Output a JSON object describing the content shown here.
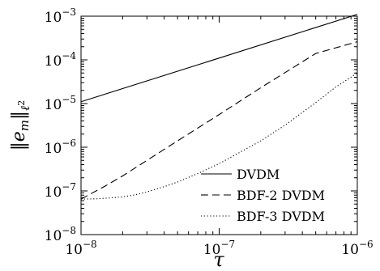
{
  "chart_data": {
    "type": "line",
    "xlabel": "τ",
    "ylabel": "‖e_m‖_ℓ²",
    "x_scale": "log",
    "y_scale": "log",
    "xlim": [
      1e-08,
      1e-06
    ],
    "ylim": [
      1e-08,
      0.001
    ],
    "x_tick_labels": [
      {
        "value": 1e-08,
        "base": "10",
        "exp": "−8"
      },
      {
        "value": 1e-07,
        "base": "10",
        "exp": "−7"
      },
      {
        "value": 1e-06,
        "base": "10",
        "exp": "−6"
      }
    ],
    "y_tick_labels": [
      {
        "value": 1e-08,
        "base": "10",
        "exp": "−8"
      },
      {
        "value": 1e-07,
        "base": "10",
        "exp": "−7"
      },
      {
        "value": 1e-06,
        "base": "10",
        "exp": "−6"
      },
      {
        "value": 1e-05,
        "base": "10",
        "exp": "−5"
      },
      {
        "value": 0.0001,
        "base": "10",
        "exp": "−4"
      },
      {
        "value": 0.001,
        "base": "10",
        "exp": "−3"
      }
    ],
    "grid": false,
    "legend_position": "bottom-right",
    "series": [
      {
        "name": "DVDM",
        "style": "solid",
        "x": [
          1e-08,
          1e-06
        ],
        "y": [
          1.1e-05,
          0.0011
        ]
      },
      {
        "name": "BDF-2 DVDM",
        "style": "dashed",
        "x": [
          1e-08,
          1.5e-08,
          2e-08,
          3e-08,
          5e-08,
          1e-07,
          2e-07,
          5e-07,
          1e-06
        ],
        "y": [
          6.5e-08,
          1.3e-07,
          2.2e-07,
          5e-07,
          1.4e-06,
          5.6e-06,
          2.3e-05,
          0.00014,
          0.00026
        ]
      },
      {
        "name": "BDF-3 DVDM",
        "style": "dotted",
        "x": [
          1e-08,
          1.3e-08,
          1.6e-08,
          2e-08,
          2.5e-08,
          3e-08,
          4e-08,
          5e-08,
          7e-08,
          1e-07,
          1.5e-07,
          2e-07,
          3e-07,
          5e-07,
          7e-07,
          1e-06
        ],
        "y": [
          6.5e-08,
          6.6e-08,
          6.9e-08,
          7.3e-08,
          8.2e-08,
          9.5e-08,
          1.25e-07,
          1.6e-07,
          2.5e-07,
          4.2e-07,
          8.5e-07,
          1.4e-06,
          3.2e-06,
          1.05e-05,
          2.4e-05,
          5e-05
        ]
      }
    ]
  }
}
